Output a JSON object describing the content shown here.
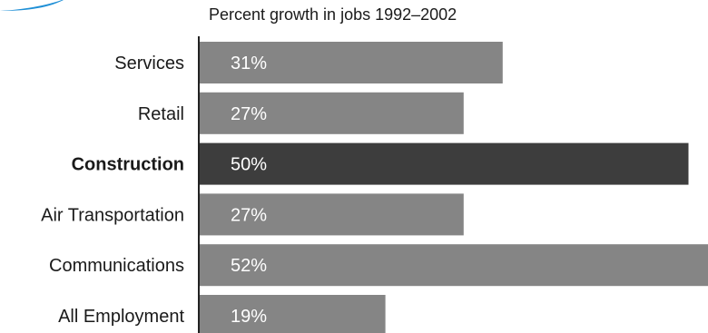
{
  "colors": {
    "bar": "#858585",
    "highlight_bar": "#3d3d3d",
    "axis": "#222222",
    "value_text": "#ffffff",
    "label_text": "#1a1a1a",
    "logo_accent": "#1e8fd6"
  },
  "chart_data": {
    "type": "bar",
    "orientation": "horizontal",
    "title": "Percent growth in jobs 1992–2002",
    "categories": [
      "Services",
      "Retail",
      "Construction",
      "Air Transportation",
      "Communications",
      "All Employment"
    ],
    "values": [
      31,
      27,
      50,
      27,
      52,
      19
    ],
    "value_labels": [
      "31%",
      "27%",
      "50%",
      "27%",
      "52%",
      "19%"
    ],
    "highlight": "Construction",
    "xlim": [
      0,
      52
    ],
    "grid": false,
    "legend": false
  }
}
